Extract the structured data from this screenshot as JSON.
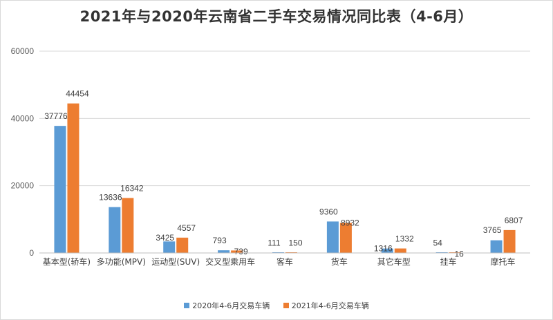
{
  "chart_data": {
    "type": "bar",
    "title": "2021年与2020年云南省二手车交易情况同比表（4-6月）",
    "categories": [
      "基本型(轿车)",
      "多功能(MPV)",
      "运动型(SUV)",
      "交叉型乘用车",
      "客车",
      "货车",
      "其它车型",
      "挂车",
      "摩托车"
    ],
    "series": [
      {
        "name": "2020年4-6月交易车辆",
        "color": "#5b9bd5",
        "values": [
          37776,
          13636,
          3425,
          793,
          111,
          9360,
          1316,
          54,
          3765
        ]
      },
      {
        "name": "2021年4-6月交易车辆",
        "color": "#ed7d31",
        "values": [
          44454,
          16342,
          4557,
          739,
          150,
          8932,
          1332,
          16,
          6807
        ]
      }
    ],
    "yticks": [
      "0",
      "20000",
      "40000",
      "60000"
    ],
    "ylim": [
      0,
      60000
    ],
    "grid": true,
    "legend_position": "bottom"
  }
}
